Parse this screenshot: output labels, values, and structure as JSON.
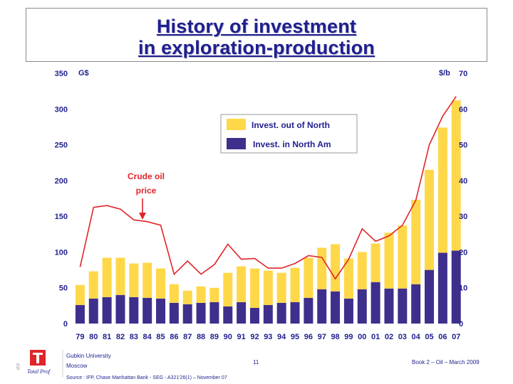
{
  "title": {
    "line1": "History of investment",
    "line2": "in exploration-production"
  },
  "chart_data": {
    "type": "bar",
    "stacked": true,
    "categories": [
      "79",
      "80",
      "81",
      "82",
      "83",
      "84",
      "85",
      "86",
      "87",
      "88",
      "89",
      "90",
      "91",
      "92",
      "93",
      "94",
      "95",
      "96",
      "97",
      "98",
      "99",
      "00",
      "01",
      "02",
      "03",
      "04",
      "05",
      "06",
      "07"
    ],
    "series": [
      {
        "name": "Invest. in North Am",
        "color": "#3f2f8c",
        "values": [
          26,
          35,
          37,
          40,
          37,
          36,
          35,
          29,
          27,
          29,
          30,
          24,
          30,
          22,
          26,
          29,
          30,
          36,
          48,
          45,
          35,
          48,
          58,
          49,
          49,
          55,
          75,
          99,
          102
        ]
      },
      {
        "name": "Invest. out of North",
        "color": "#ffd84a",
        "values": [
          28,
          38,
          55,
          52,
          47,
          49,
          42,
          26,
          19,
          23,
          20,
          47,
          50,
          55,
          48,
          42,
          48,
          56,
          58,
          66,
          56,
          52,
          54,
          78,
          88,
          118,
          140,
          175,
          210
        ]
      }
    ],
    "line": {
      "name": "Crude oil price",
      "color": "#e0242a",
      "axis": "right",
      "values": [
        15.8,
        32.5,
        33,
        32,
        29,
        28.5,
        27.5,
        13.8,
        17.5,
        13.8,
        16.5,
        22.2,
        18,
        18.2,
        15.5,
        15.5,
        16.8,
        19,
        18.5,
        12.5,
        18,
        26.5,
        23,
        24.5,
        27.5,
        34.5,
        50,
        58,
        63.5
      ]
    },
    "ylabel_left": "G$",
    "ylabel_right": "$/b",
    "ylim_left": [
      0,
      350
    ],
    "ylim_right": [
      0,
      70
    ],
    "yticks_left": [
      "0",
      "50",
      "100",
      "150",
      "200",
      "250",
      "300",
      "350"
    ],
    "yticks_right": [
      "0",
      "10",
      "20",
      "30",
      "40",
      "50",
      "60",
      "70"
    ],
    "annotation": {
      "text_line1": "Crude oil",
      "text_line2": "price"
    },
    "legend": [
      "Invest. out of North",
      "Invest. in North Am"
    ]
  },
  "footer": {
    "university": "Gubkin University",
    "city": "Moscow",
    "page": "11",
    "book": "Book 2 – Oil – March 2009",
    "source": "Source : IFP, Chase Manhattan Bank  - SEG - A321'26(1) – November 07",
    "logo_text": "Total Prof",
    "side_text": "IFP"
  },
  "colors": {
    "title": "#1f1f8f",
    "north_am": "#3f2f8c",
    "out_north": "#ffd84a",
    "oil": "#e0242a"
  }
}
